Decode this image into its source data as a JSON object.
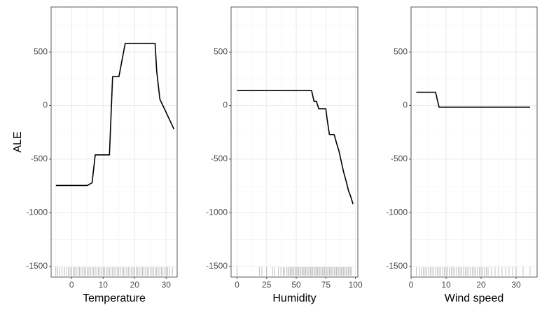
{
  "chart_data": {
    "type": "line",
    "ylabel": "ALE",
    "ylim": [
      -1600,
      920
    ],
    "yticks": [
      -1500,
      -1000,
      -500,
      0,
      500
    ],
    "grid": true,
    "panels": [
      {
        "xlabel": "Temperature",
        "xlim": [
          -6.5,
          33.5
        ],
        "xticks": [
          0,
          10,
          20,
          30
        ],
        "line": {
          "x": [
            -5,
            5,
            6.5,
            7.5,
            12,
            13,
            14,
            15,
            17,
            19,
            24,
            26.5,
            27,
            28,
            32.5
          ],
          "y": [
            -745,
            -745,
            -720,
            -460,
            -460,
            270,
            270,
            270,
            580,
            580,
            580,
            580,
            320,
            60,
            -220
          ]
        },
        "rug": [
          -5,
          -4.5,
          -3.8,
          -3,
          -2.2,
          -1.5,
          -1,
          -0.5,
          0,
          0.5,
          1,
          1.5,
          2,
          2.5,
          3,
          3.5,
          4,
          4.5,
          5,
          5.5,
          6,
          6.5,
          7,
          7.5,
          8,
          8.5,
          9,
          9.5,
          10,
          10.5,
          11,
          11.5,
          12,
          12.5,
          13,
          13.5,
          14,
          14.5,
          15,
          15.5,
          16,
          16.5,
          17,
          17.5,
          18,
          18.5,
          19,
          19.5,
          20,
          20.5,
          21,
          21.5,
          22,
          22.5,
          23,
          23.5,
          24,
          24.5,
          25,
          25.5,
          26,
          26.5,
          27,
          27.5,
          28,
          28.5,
          29,
          29.5,
          30,
          30.5,
          31,
          32
        ]
      },
      {
        "xlabel": "Humidity",
        "xlim": [
          -5,
          102
        ],
        "xticks": [
          0,
          25,
          50,
          75,
          100
        ],
        "line": {
          "x": [
            0,
            25,
            50,
            63,
            65,
            67,
            69,
            71,
            73,
            75,
            76,
            78,
            80,
            82,
            84,
            86,
            88,
            90,
            92,
            94,
            96,
            98
          ],
          "y": [
            140,
            140,
            140,
            140,
            40,
            40,
            -30,
            -30,
            -30,
            -30,
            -120,
            -270,
            -270,
            -270,
            -350,
            -420,
            -520,
            -620,
            -700,
            -790,
            -850,
            -920
          ]
        },
        "rug": [
          0,
          19,
          21,
          25,
          30,
          32,
          35,
          37,
          39,
          40,
          42,
          43,
          44,
          45,
          46,
          47,
          48,
          49,
          50,
          51,
          52,
          53,
          54,
          55,
          56,
          57,
          58,
          59,
          60,
          61,
          62,
          63,
          64,
          65,
          66,
          67,
          68,
          69,
          70,
          71,
          72,
          73,
          74,
          75,
          76,
          77,
          78,
          79,
          80,
          81,
          82,
          83,
          84,
          85,
          86,
          87,
          88,
          89,
          90,
          91,
          92,
          93,
          94,
          95,
          96,
          97
        ]
      },
      {
        "xlabel": "Wind speed",
        "xlim": [
          0,
          36
        ],
        "xticks": [
          0,
          10,
          20,
          30
        ],
        "line": {
          "x": [
            1.5,
            7,
            8,
            34
          ],
          "y": [
            125,
            125,
            -15,
            -15
          ]
        },
        "rug": [
          1.5,
          2.5,
          3,
          3.5,
          4,
          4.5,
          5,
          5.5,
          6,
          6.5,
          7,
          7.5,
          8,
          8.5,
          9,
          9.5,
          10,
          10.5,
          11,
          11.5,
          12,
          12.5,
          13,
          13.5,
          14,
          14.5,
          15,
          15.5,
          16,
          16.5,
          17,
          17.5,
          18,
          18.5,
          19,
          19.5,
          20,
          20.5,
          21,
          21.5,
          22,
          23,
          24,
          25,
          26,
          27,
          28,
          29,
          30,
          32,
          34
        ]
      }
    ]
  }
}
